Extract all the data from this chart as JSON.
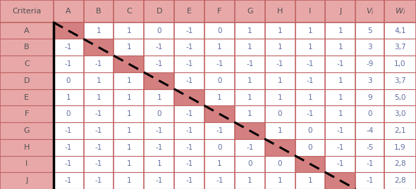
{
  "col_headers": [
    "Criteria",
    "A",
    "B",
    "C",
    "D",
    "E",
    "F",
    "G",
    "H",
    "I",
    "J",
    "V_i",
    "W_i"
  ],
  "row_labels": [
    "A",
    "B",
    "C",
    "D",
    "E",
    "F",
    "G",
    "H",
    "I",
    "J"
  ],
  "table_data": [
    [
      " ",
      "1",
      "1",
      "0",
      "-1",
      "0",
      "1",
      "1",
      "1",
      "1",
      "5",
      "4,1"
    ],
    [
      "-1",
      " ",
      "1",
      "-1",
      "-1",
      "1",
      "1",
      "1",
      "1",
      "1",
      "3",
      "3,7"
    ],
    [
      "-1",
      "-1",
      " ",
      "-1",
      "-1",
      "-1",
      "-1",
      "-1",
      "-1",
      "-1",
      "-9",
      "1,0"
    ],
    [
      "0",
      "1",
      "1",
      " ",
      "-1",
      "0",
      "1",
      "1",
      "-1",
      "1",
      "3",
      "3,7"
    ],
    [
      "1",
      "1",
      "1",
      "1",
      " ",
      "1",
      "1",
      "1",
      "1",
      "1",
      "9",
      "5,0"
    ],
    [
      "0",
      "-1",
      "1",
      "0",
      "-1",
      " ",
      "1",
      "0",
      "-1",
      "1",
      "0",
      "3,0"
    ],
    [
      "-1",
      "-1",
      "1",
      "-1",
      "-1",
      "-1",
      " ",
      "1",
      "0",
      "-1",
      "-4",
      "2,1"
    ],
    [
      "-1",
      "-1",
      "1",
      "-1",
      "-1",
      "0",
      "-1",
      " ",
      "0",
      "-1",
      "-5",
      "1,9"
    ],
    [
      "-1",
      "-1",
      "1",
      "1",
      "-1",
      "1",
      "0",
      "0",
      " ",
      "-1",
      "-1",
      "2,8"
    ],
    [
      "-1",
      "-1",
      "1",
      "-1",
      "-1",
      "-1",
      "1",
      "1",
      "1",
      " ",
      "-1",
      "2,8"
    ]
  ],
  "header_bg": "#e8a8a8",
  "cell_bg_white": "#ffffff",
  "cell_bg_diagonal": "#d48080",
  "grid_color": "#c06060",
  "text_color": "#505050",
  "text_color_data": "#6070a0",
  "figsize": [
    5.9,
    2.69
  ],
  "dpi": 100,
  "col_widths_rel": [
    1.5,
    0.85,
    0.85,
    0.85,
    0.85,
    0.85,
    0.85,
    0.85,
    0.85,
    0.85,
    0.85,
    0.8,
    0.9
  ]
}
